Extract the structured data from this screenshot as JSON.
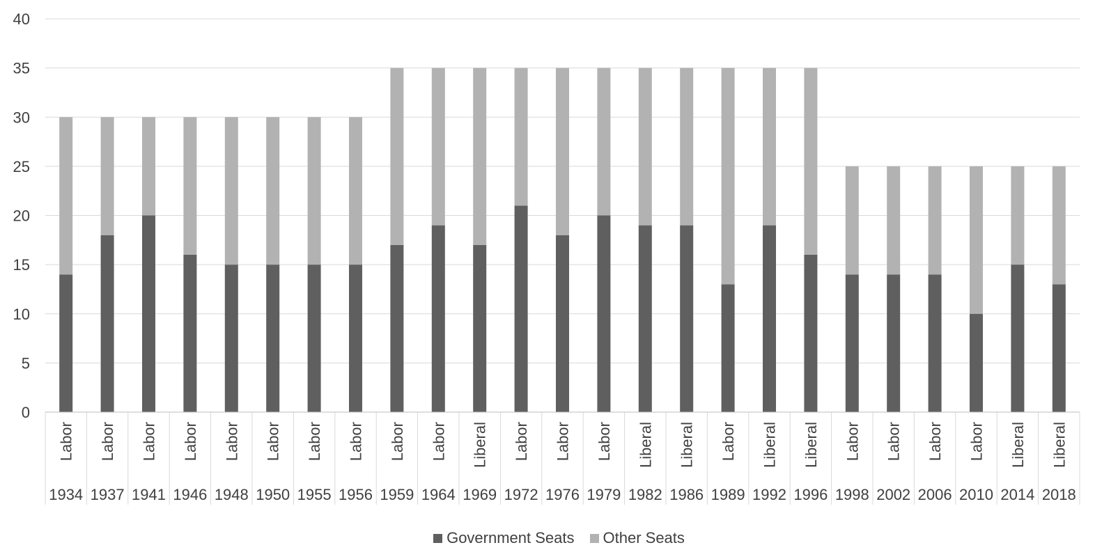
{
  "chart_data": {
    "type": "bar",
    "stacked": true,
    "ylim": [
      0,
      40
    ],
    "yticks": [
      0,
      5,
      10,
      15,
      20,
      25,
      30,
      35,
      40
    ],
    "grid": true,
    "legend_position": "bottom",
    "categories": [
      "1934",
      "1937",
      "1941",
      "1946",
      "1948",
      "1950",
      "1955",
      "1956",
      "1959",
      "1964",
      "1969",
      "1972",
      "1976",
      "1979",
      "1982",
      "1986",
      "1989",
      "1992",
      "1996",
      "1998",
      "2002",
      "2006",
      "2010",
      "2014",
      "2018"
    ],
    "parties": [
      "Labor",
      "Labor",
      "Labor",
      "Labor",
      "Labor",
      "Labor",
      "Labor",
      "Labor",
      "Labor",
      "Labor",
      "Liberal",
      "Labor",
      "Labor",
      "Labor",
      "Liberal",
      "Liberal",
      "Labor",
      "Liberal",
      "Liberal",
      "Labor",
      "Labor",
      "Labor",
      "Labor",
      "Liberal",
      "Liberal"
    ],
    "series": [
      {
        "name": "Government Seats",
        "color": "#5f5f5f",
        "values": [
          14,
          18,
          20,
          16,
          15,
          15,
          15,
          15,
          17,
          19,
          17,
          21,
          18,
          20,
          19,
          19,
          13,
          19,
          16,
          14,
          14,
          14,
          10,
          15,
          13
        ]
      },
      {
        "name": "Other Seats",
        "color": "#b2b2b2",
        "values": [
          16,
          12,
          10,
          14,
          15,
          15,
          15,
          15,
          18,
          16,
          18,
          14,
          17,
          15,
          16,
          16,
          22,
          16,
          19,
          11,
          11,
          11,
          15,
          10,
          12
        ]
      }
    ]
  }
}
